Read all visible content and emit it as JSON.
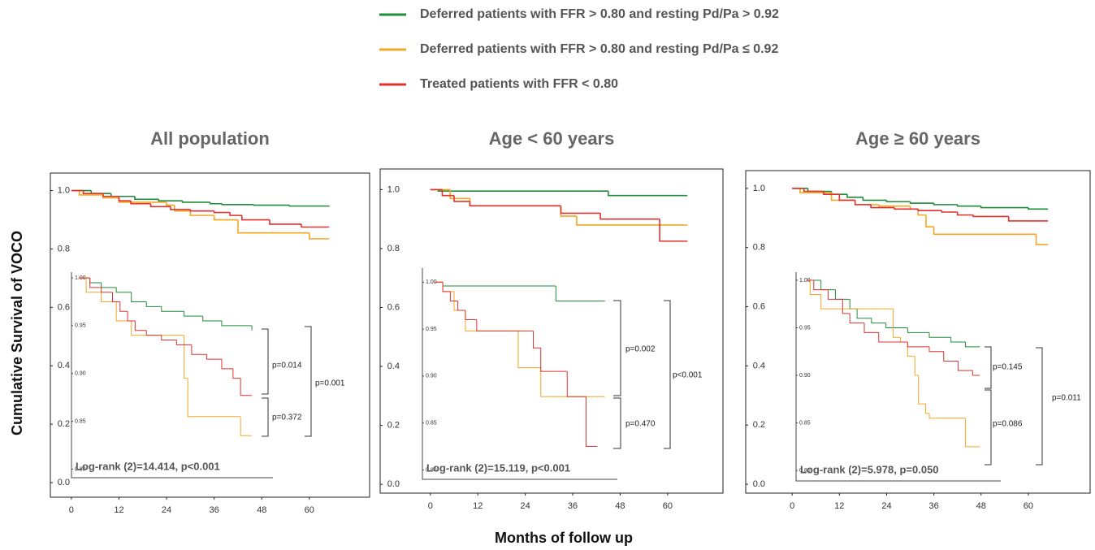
{
  "xlabel": "Months of follow up",
  "ylabel": "Cumulative Survival of VOCO",
  "chart_data": [
    {
      "type": "step",
      "title": "All population",
      "xlim": [
        -5.3,
        75.2
      ],
      "ylim": [
        -0.05,
        1.06
      ],
      "xticks": [
        0,
        12,
        24,
        36,
        48,
        60
      ],
      "yticks": [
        {
          "value": 0,
          "label": "0.0"
        },
        0.2,
        0.4,
        0.6,
        0.8,
        {
          "value": 1,
          "label": "1.0"
        }
      ],
      "series": [
        {
          "name": "Deferred patients with FFR > 0.80 and resting Pd/Pa > 0.92",
          "color": "#1e8c3a",
          "x": [
            0,
            5,
            10,
            16,
            22,
            28,
            35,
            38,
            46,
            55,
            65
          ],
          "values": [
            1,
            0.99,
            0.98,
            0.97,
            0.965,
            0.96,
            0.955,
            0.952,
            0.95,
            0.947,
            0.945
          ]
        },
        {
          "name": "Deferred patients with FFR > 0.80 and resting Pd/Pa ≤ 0.92",
          "color": "#f5a623",
          "x": [
            0,
            2,
            8,
            12,
            24,
            26,
            30,
            36,
            42,
            60,
            65
          ],
          "values": [
            1,
            0.985,
            0.975,
            0.96,
            0.95,
            0.93,
            0.915,
            0.9,
            0.855,
            0.835,
            0.835
          ]
        },
        {
          "name": "Treated patients with FFR < 0.80",
          "color": "#e0322f",
          "x": [
            0,
            3,
            8,
            12,
            15,
            20,
            25,
            30,
            36,
            40,
            43,
            50,
            58,
            65
          ],
          "values": [
            1,
            0.99,
            0.98,
            0.965,
            0.955,
            0.945,
            0.935,
            0.93,
            0.925,
            0.915,
            0.9,
            0.885,
            0.875,
            0.875
          ]
        }
      ],
      "inset": {
        "type": "step",
        "xlim": [
          -1.9,
          51.6
        ],
        "ylim": [
          0.791,
          1.006
        ],
        "yticks": [
          {
            "value": 0.8,
            "label": "0.80"
          },
          0.85,
          {
            "value": 0.9,
            "label": "0.90"
          },
          0.95,
          {
            "value": 1,
            "label": "1.00"
          }
        ],
        "series": [
          {
            "color": "#1e8c3a",
            "x": [
              0,
              3,
              6,
              10,
              14,
              18,
              22,
              28,
              33,
              38,
              46
            ],
            "values": [
              1,
              0.995,
              0.99,
              0.985,
              0.975,
              0.97,
              0.965,
              0.96,
              0.955,
              0.95,
              0.945
            ]
          },
          {
            "color": "#f5a623",
            "x": [
              0,
              2,
              6,
              10,
              14,
              25,
              28,
              29,
              43,
              46
            ],
            "values": [
              1,
              0.985,
              0.975,
              0.955,
              0.94,
              0.94,
              0.895,
              0.855,
              0.835,
              0.835
            ]
          },
          {
            "color": "#e0322f",
            "x": [
              0,
              3,
              6,
              9,
              11,
              13,
              15,
              18,
              22,
              26,
              30,
              34,
              38,
              41,
              43,
              46
            ],
            "values": [
              1,
              0.99,
              0.985,
              0.975,
              0.965,
              0.955,
              0.945,
              0.94,
              0.935,
              0.93,
              0.92,
              0.915,
              0.905,
              0.895,
              0.877,
              0.877
            ]
          }
        ],
        "annotations": [
          "p=0.014",
          "p=0.372",
          "p=0.001"
        ],
        "text": "Log-rank (2)=14.414, p<0.001"
      }
    },
    {
      "type": "step",
      "title": "Age < 60 years",
      "xlim": [
        -12.7,
        74
      ],
      "ylim": [
        -0.03,
        1.07
      ],
      "xticks": [
        0,
        12,
        24,
        36,
        48,
        60
      ],
      "yticks": [
        {
          "value": 0,
          "label": "0.0"
        },
        0.2,
        0.4,
        0.6,
        0.8,
        {
          "value": 1,
          "label": "1.0"
        }
      ],
      "series": [
        {
          "color": "#1e8c3a",
          "x": [
            0,
            2,
            45,
            65
          ],
          "values": [
            1,
            0.995,
            0.98,
            0.98
          ]
        },
        {
          "color": "#f5a623",
          "x": [
            0,
            5,
            10,
            28,
            33,
            37,
            65
          ],
          "values": [
            1,
            0.97,
            0.945,
            0.945,
            0.91,
            0.88,
            0.88
          ]
        },
        {
          "color": "#e0322f",
          "x": [
            0,
            3,
            6,
            10,
            33,
            43,
            58,
            65
          ],
          "values": [
            1,
            0.98,
            0.96,
            0.945,
            0.92,
            0.9,
            0.825,
            0.825
          ]
        }
      ],
      "inset": {
        "type": "step",
        "xlim": [
          -3.4,
          48.3
        ],
        "ylim": [
          0.79,
          1.015
        ],
        "yticks": [
          {
            "value": 0.8,
            "label": "0.80"
          },
          0.85,
          {
            "value": 0.9,
            "label": "0.90"
          },
          0.95,
          {
            "value": 1,
            "label": "1.00"
          }
        ],
        "series": [
          {
            "color": "#1e8c3a",
            "x": [
              0,
              2,
              32,
              45
            ],
            "values": [
              1,
              0.996,
              0.98,
              0.98
            ]
          },
          {
            "color": "#f5a623",
            "x": [
              0,
              2,
              5,
              8,
              22,
              28,
              45
            ],
            "values": [
              1,
              0.99,
              0.97,
              0.948,
              0.909,
              0.878,
              0.878
            ]
          },
          {
            "color": "#e0322f",
            "x": [
              0,
              2,
              4,
              6,
              8,
              11,
              26,
              28,
              35,
              40,
              43
            ],
            "values": [
              1,
              0.99,
              0.98,
              0.97,
              0.96,
              0.948,
              0.93,
              0.905,
              0.878,
              0.825,
              0.825
            ]
          }
        ],
        "annotations": [
          "p=0.002",
          "p=0.470",
          "p<0.001"
        ],
        "text": "Log-rank (2)=15.119, p<0.001"
      }
    },
    {
      "type": "step",
      "title": "Age ≥ 60 years",
      "xlim": [
        -11.8,
        75.7
      ],
      "ylim": [
        -0.03,
        1.06
      ],
      "xticks": [
        0,
        12,
        24,
        36,
        48,
        60
      ],
      "yticks": [
        {
          "value": 0,
          "label": "0.0"
        },
        0.2,
        0.4,
        0.6,
        0.8,
        {
          "value": 1,
          "label": "1.0"
        }
      ],
      "series": [
        {
          "color": "#1e8c3a",
          "x": [
            0,
            4,
            10,
            14,
            18,
            24,
            30,
            36,
            42,
            48,
            60,
            65
          ],
          "values": [
            1,
            0.99,
            0.98,
            0.97,
            0.96,
            0.955,
            0.95,
            0.945,
            0.94,
            0.935,
            0.93,
            0.93
          ]
        },
        {
          "color": "#f5a623",
          "x": [
            0,
            2,
            10,
            16,
            22,
            30,
            32,
            34,
            36,
            62,
            65
          ],
          "values": [
            1,
            0.985,
            0.96,
            0.945,
            0.94,
            0.93,
            0.91,
            0.87,
            0.845,
            0.81,
            0.81
          ]
        },
        {
          "color": "#e0322f",
          "x": [
            0,
            3,
            8,
            12,
            16,
            20,
            26,
            32,
            38,
            42,
            46,
            55,
            65
          ],
          "values": [
            1,
            0.99,
            0.98,
            0.96,
            0.945,
            0.935,
            0.93,
            0.925,
            0.92,
            0.91,
            0.905,
            0.89,
            0.89
          ]
        }
      ],
      "inset": {
        "type": "step",
        "xlim": [
          -2.9,
          53.8
        ],
        "ylim": [
          0.789,
          1.0085
        ],
        "yticks": [
          {
            "value": 0.8,
            "label": "0.80"
          },
          0.85,
          {
            "value": 0.9,
            "label": "0.90"
          },
          0.95,
          {
            "value": 1,
            "label": "1.00"
          }
        ],
        "series": [
          {
            "color": "#1e8c3a",
            "x": [
              0,
              4,
              8,
              12,
              14,
              18,
              22,
              28,
              34,
              40,
              44,
              48
            ],
            "values": [
              1,
              0.99,
              0.98,
              0.97,
              0.96,
              0.955,
              0.95,
              0.945,
              0.94,
              0.935,
              0.93,
              0.93
            ]
          },
          {
            "color": "#f5a623",
            "x": [
              0,
              1,
              4,
              20,
              24,
              26,
              28,
              30,
              31,
              33,
              34,
              44,
              48
            ],
            "values": [
              1,
              0.985,
              0.97,
              0.97,
              0.94,
              0.935,
              0.92,
              0.9,
              0.87,
              0.86,
              0.855,
              0.825,
              0.825
            ]
          },
          {
            "color": "#e0322f",
            "x": [
              0,
              2,
              6,
              10,
              12,
              16,
              20,
              28,
              34,
              38,
              42,
              46,
              48
            ],
            "values": [
              1,
              0.99,
              0.98,
              0.965,
              0.955,
              0.945,
              0.935,
              0.93,
              0.925,
              0.915,
              0.905,
              0.9,
              0.9
            ]
          }
        ],
        "annotations": [
          "p=0.145",
          "p=0.086",
          "p=0.011"
        ],
        "text": "Log-rank (2)=5.978, p=0.050"
      }
    }
  ]
}
